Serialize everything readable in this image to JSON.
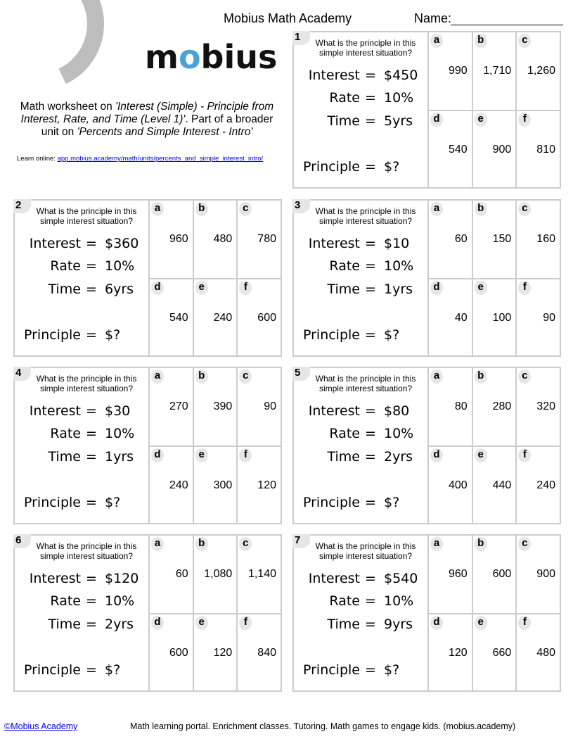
{
  "header": {
    "site_title": "Mobius Math Academy",
    "name_label": "Name:",
    "logo_text": "mobius"
  },
  "intro": {
    "prefix": "Math worksheet on ",
    "topic": "'Interest (Simple) - Principle from Interest, Rate, and Time (Level 1)'",
    "middle": ". Part of a broader unit on ",
    "unit": "'Percents and Simple Interest - Intro'",
    "learn_label": "Learn online: ",
    "learn_link": "app.mobius.academy/math/units/percents_and_simple_interest_intro/"
  },
  "labels": {
    "question": "What is the principle in this simple interest situation?",
    "interest": "Interest",
    "rate": "Rate",
    "time": "Time",
    "principle": "Principle",
    "equals": "=",
    "principle_value": "$?",
    "letters": [
      "a",
      "b",
      "c",
      "d",
      "e",
      "f"
    ]
  },
  "problems": [
    {
      "number": "1",
      "interest": "$450",
      "rate": "10%",
      "time": "5yrs",
      "answers": [
        "990",
        "1,710",
        "1,260",
        "540",
        "900",
        "810"
      ]
    },
    {
      "number": "2",
      "interest": "$360",
      "rate": "10%",
      "time": "6yrs",
      "answers": [
        "960",
        "480",
        "780",
        "540",
        "240",
        "600"
      ]
    },
    {
      "number": "3",
      "interest": "$10",
      "rate": "10%",
      "time": "1yrs",
      "answers": [
        "60",
        "150",
        "160",
        "40",
        "100",
        "90"
      ]
    },
    {
      "number": "4",
      "interest": "$30",
      "rate": "10%",
      "time": "1yrs",
      "answers": [
        "270",
        "390",
        "90",
        "240",
        "300",
        "120"
      ]
    },
    {
      "number": "5",
      "interest": "$80",
      "rate": "10%",
      "time": "2yrs",
      "answers": [
        "80",
        "280",
        "320",
        "400",
        "440",
        "240"
      ]
    },
    {
      "number": "6",
      "interest": "$120",
      "rate": "10%",
      "time": "2yrs",
      "answers": [
        "60",
        "1,080",
        "1,140",
        "600",
        "120",
        "840"
      ]
    },
    {
      "number": "7",
      "interest": "$540",
      "rate": "10%",
      "time": "9yrs",
      "answers": [
        "960",
        "600",
        "900",
        "120",
        "660",
        "480"
      ]
    }
  ],
  "footer": {
    "copyright_link": "©Mobius Academy",
    "tagline": "Math learning portal. Enrichment classes. Tutoring. Math games to engage kids. (mobius.academy)"
  }
}
